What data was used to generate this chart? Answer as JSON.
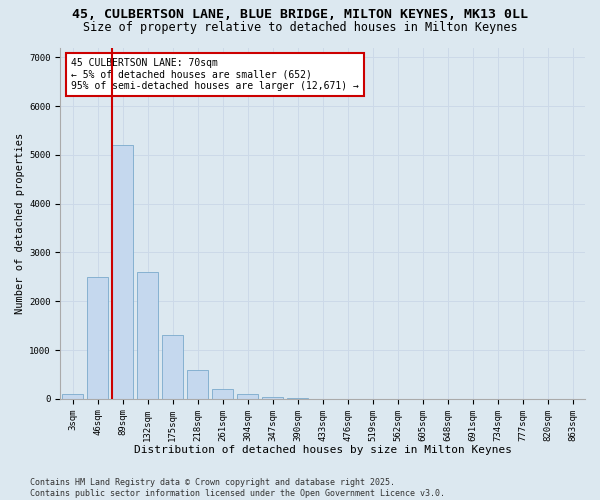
{
  "title1": "45, CULBERTSON LANE, BLUE BRIDGE, MILTON KEYNES, MK13 0LL",
  "title2": "Size of property relative to detached houses in Milton Keynes",
  "xlabel": "Distribution of detached houses by size in Milton Keynes",
  "ylabel": "Number of detached properties",
  "categories": [
    "3sqm",
    "46sqm",
    "89sqm",
    "132sqm",
    "175sqm",
    "218sqm",
    "261sqm",
    "304sqm",
    "347sqm",
    "390sqm",
    "433sqm",
    "476sqm",
    "519sqm",
    "562sqm",
    "605sqm",
    "648sqm",
    "691sqm",
    "734sqm",
    "777sqm",
    "820sqm",
    "863sqm"
  ],
  "values": [
    100,
    2500,
    5200,
    2600,
    1300,
    600,
    200,
    100,
    30,
    10,
    5,
    2,
    1,
    0,
    0,
    0,
    0,
    0,
    0,
    0,
    0
  ],
  "bar_color": "#c5d8ee",
  "bar_edge_color": "#7aaacc",
  "annotation_text": "45 CULBERTSON LANE: 70sqm\n← 5% of detached houses are smaller (652)\n95% of semi-detached houses are larger (12,671) →",
  "annotation_box_color": "#ffffff",
  "annotation_box_edge_color": "#cc0000",
  "vline_color": "#cc0000",
  "grid_color": "#ccd9e8",
  "background_color": "#dce8f0",
  "footer_text": "Contains HM Land Registry data © Crown copyright and database right 2025.\nContains public sector information licensed under the Open Government Licence v3.0.",
  "ylim": [
    0,
    7200
  ],
  "title1_fontsize": 9.5,
  "title2_fontsize": 8.5,
  "xlabel_fontsize": 8,
  "ylabel_fontsize": 7.5,
  "tick_fontsize": 6.5,
  "annotation_fontsize": 7,
  "footer_fontsize": 6
}
